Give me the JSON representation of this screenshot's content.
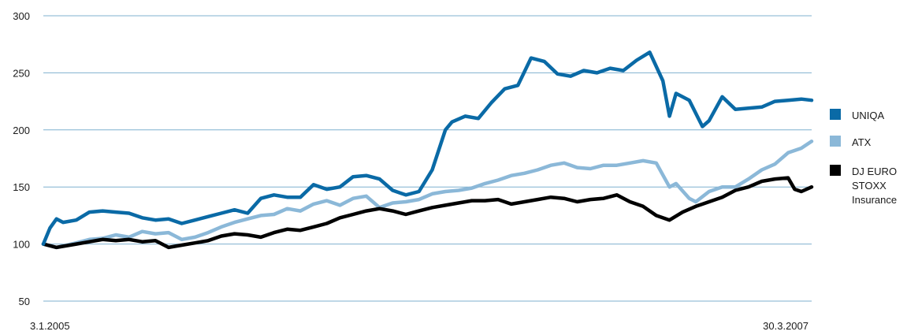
{
  "chart_data": {
    "type": "line",
    "title": "",
    "xlabel": "",
    "ylabel": "",
    "ylim": [
      50,
      300
    ],
    "yticks": [
      50,
      100,
      150,
      200,
      250,
      300
    ],
    "xlim": [
      "2005-01-03",
      "2007-03-30"
    ],
    "x_tick_labels": [
      "3.1.2005",
      "30.3.2007"
    ],
    "grid": "horizontal",
    "legend_position": "right",
    "series": [
      {
        "name": "UNIQA",
        "color": "#0a6aa6",
        "points": [
          [
            "2005-01-03",
            100
          ],
          [
            "2005-01-10",
            114
          ],
          [
            "2005-01-17",
            122
          ],
          [
            "2005-01-24",
            119
          ],
          [
            "2005-02-07",
            121
          ],
          [
            "2005-02-21",
            128
          ],
          [
            "2005-03-07",
            129
          ],
          [
            "2005-03-21",
            128
          ],
          [
            "2005-04-04",
            127
          ],
          [
            "2005-04-18",
            123
          ],
          [
            "2005-05-02",
            121
          ],
          [
            "2005-05-16",
            122
          ],
          [
            "2005-05-30",
            118
          ],
          [
            "2005-06-13",
            121
          ],
          [
            "2005-06-27",
            124
          ],
          [
            "2005-07-11",
            127
          ],
          [
            "2005-07-25",
            130
          ],
          [
            "2005-08-08",
            127
          ],
          [
            "2005-08-22",
            140
          ],
          [
            "2005-09-05",
            143
          ],
          [
            "2005-09-19",
            141
          ],
          [
            "2005-10-03",
            141
          ],
          [
            "2005-10-17",
            152
          ],
          [
            "2005-10-31",
            148
          ],
          [
            "2005-11-14",
            150
          ],
          [
            "2005-11-28",
            159
          ],
          [
            "2005-12-12",
            160
          ],
          [
            "2005-12-26",
            157
          ],
          [
            "2006-01-09",
            147
          ],
          [
            "2006-01-23",
            143
          ],
          [
            "2006-02-06",
            146
          ],
          [
            "2006-02-20",
            165
          ],
          [
            "2006-03-06",
            200
          ],
          [
            "2006-03-13",
            207
          ],
          [
            "2006-03-27",
            212
          ],
          [
            "2006-04-10",
            210
          ],
          [
            "2006-04-24",
            224
          ],
          [
            "2006-05-08",
            236
          ],
          [
            "2006-05-22",
            239
          ],
          [
            "2006-06-05",
            263
          ],
          [
            "2006-06-19",
            260
          ],
          [
            "2006-07-03",
            249
          ],
          [
            "2006-07-17",
            247
          ],
          [
            "2006-07-31",
            252
          ],
          [
            "2006-08-14",
            250
          ],
          [
            "2006-08-28",
            254
          ],
          [
            "2006-09-11",
            252
          ],
          [
            "2006-09-25",
            261
          ],
          [
            "2006-10-09",
            268
          ],
          [
            "2006-10-23",
            243
          ],
          [
            "2006-10-30",
            212
          ],
          [
            "2006-11-06",
            232
          ],
          [
            "2006-11-20",
            226
          ],
          [
            "2006-12-04",
            203
          ],
          [
            "2006-12-11",
            208
          ],
          [
            "2006-12-25",
            229
          ],
          [
            "2007-01-08",
            218
          ],
          [
            "2007-01-22",
            219
          ],
          [
            "2007-02-05",
            220
          ],
          [
            "2007-02-19",
            225
          ],
          [
            "2007-03-05",
            226
          ],
          [
            "2007-03-19",
            227
          ],
          [
            "2007-03-30",
            226
          ]
        ]
      },
      {
        "name": "ATX",
        "color": "#8bb8d8",
        "points": [
          [
            "2005-01-03",
            100
          ],
          [
            "2005-01-17",
            97
          ],
          [
            "2005-02-07",
            101
          ],
          [
            "2005-02-21",
            104
          ],
          [
            "2005-03-07",
            105
          ],
          [
            "2005-03-21",
            108
          ],
          [
            "2005-04-04",
            106
          ],
          [
            "2005-04-18",
            111
          ],
          [
            "2005-05-02",
            109
          ],
          [
            "2005-05-16",
            110
          ],
          [
            "2005-05-30",
            104
          ],
          [
            "2005-06-13",
            106
          ],
          [
            "2005-06-27",
            110
          ],
          [
            "2005-07-11",
            115
          ],
          [
            "2005-07-25",
            119
          ],
          [
            "2005-08-08",
            122
          ],
          [
            "2005-08-22",
            125
          ],
          [
            "2005-09-05",
            126
          ],
          [
            "2005-09-19",
            131
          ],
          [
            "2005-10-03",
            129
          ],
          [
            "2005-10-17",
            135
          ],
          [
            "2005-10-31",
            138
          ],
          [
            "2005-11-14",
            134
          ],
          [
            "2005-11-28",
            140
          ],
          [
            "2005-12-12",
            142
          ],
          [
            "2005-12-26",
            132
          ],
          [
            "2006-01-09",
            136
          ],
          [
            "2006-01-23",
            137
          ],
          [
            "2006-02-06",
            139
          ],
          [
            "2006-02-20",
            144
          ],
          [
            "2006-03-06",
            146
          ],
          [
            "2006-03-20",
            147
          ],
          [
            "2006-04-03",
            149
          ],
          [
            "2006-04-17",
            153
          ],
          [
            "2006-05-01",
            156
          ],
          [
            "2006-05-15",
            160
          ],
          [
            "2006-05-29",
            162
          ],
          [
            "2006-06-12",
            165
          ],
          [
            "2006-06-26",
            169
          ],
          [
            "2006-07-10",
            171
          ],
          [
            "2006-07-24",
            167
          ],
          [
            "2006-08-07",
            166
          ],
          [
            "2006-08-21",
            169
          ],
          [
            "2006-09-04",
            169
          ],
          [
            "2006-09-18",
            171
          ],
          [
            "2006-10-02",
            173
          ],
          [
            "2006-10-16",
            171
          ],
          [
            "2006-10-30",
            150
          ],
          [
            "2006-11-06",
            153
          ],
          [
            "2006-11-20",
            140
          ],
          [
            "2006-11-27",
            137
          ],
          [
            "2006-12-11",
            146
          ],
          [
            "2006-12-25",
            150
          ],
          [
            "2007-01-08",
            150
          ],
          [
            "2007-01-22",
            157
          ],
          [
            "2007-02-05",
            165
          ],
          [
            "2007-02-19",
            170
          ],
          [
            "2007-03-05",
            180
          ],
          [
            "2007-03-19",
            184
          ],
          [
            "2007-03-30",
            190
          ]
        ]
      },
      {
        "name": "DJ EURO STOXX Insurance",
        "color": "#000000",
        "points": [
          [
            "2005-01-03",
            100
          ],
          [
            "2005-01-17",
            97
          ],
          [
            "2005-02-07",
            100
          ],
          [
            "2005-02-21",
            102
          ],
          [
            "2005-03-07",
            104
          ],
          [
            "2005-03-21",
            103
          ],
          [
            "2005-04-04",
            104
          ],
          [
            "2005-04-18",
            102
          ],
          [
            "2005-05-02",
            103
          ],
          [
            "2005-05-16",
            97
          ],
          [
            "2005-05-30",
            99
          ],
          [
            "2005-06-13",
            101
          ],
          [
            "2005-06-27",
            103
          ],
          [
            "2005-07-11",
            107
          ],
          [
            "2005-07-25",
            109
          ],
          [
            "2005-08-08",
            108
          ],
          [
            "2005-08-22",
            106
          ],
          [
            "2005-09-05",
            110
          ],
          [
            "2005-09-19",
            113
          ],
          [
            "2005-10-03",
            112
          ],
          [
            "2005-10-17",
            115
          ],
          [
            "2005-10-31",
            118
          ],
          [
            "2005-11-14",
            123
          ],
          [
            "2005-11-28",
            126
          ],
          [
            "2005-12-12",
            129
          ],
          [
            "2005-12-26",
            131
          ],
          [
            "2006-01-09",
            129
          ],
          [
            "2006-01-23",
            126
          ],
          [
            "2006-02-06",
            129
          ],
          [
            "2006-02-20",
            132
          ],
          [
            "2006-03-06",
            134
          ],
          [
            "2006-03-20",
            136
          ],
          [
            "2006-04-03",
            138
          ],
          [
            "2006-04-17",
            138
          ],
          [
            "2006-05-01",
            139
          ],
          [
            "2006-05-15",
            135
          ],
          [
            "2006-05-29",
            137
          ],
          [
            "2006-06-12",
            139
          ],
          [
            "2006-06-26",
            141
          ],
          [
            "2006-07-10",
            140
          ],
          [
            "2006-07-24",
            137
          ],
          [
            "2006-08-07",
            139
          ],
          [
            "2006-08-21",
            140
          ],
          [
            "2006-09-04",
            143
          ],
          [
            "2006-09-18",
            137
          ],
          [
            "2006-10-02",
            133
          ],
          [
            "2006-10-16",
            125
          ],
          [
            "2006-10-30",
            121
          ],
          [
            "2006-11-13",
            128
          ],
          [
            "2006-11-27",
            133
          ],
          [
            "2006-12-11",
            137
          ],
          [
            "2006-12-25",
            141
          ],
          [
            "2007-01-08",
            147
          ],
          [
            "2007-01-22",
            150
          ],
          [
            "2007-02-05",
            155
          ],
          [
            "2007-02-19",
            157
          ],
          [
            "2007-03-05",
            158
          ],
          [
            "2007-03-12",
            148
          ],
          [
            "2007-03-19",
            146
          ],
          [
            "2007-03-30",
            150
          ]
        ]
      }
    ],
    "legend": [
      {
        "series": "UNIQA",
        "lines": [
          "UNIQA"
        ]
      },
      {
        "series": "ATX",
        "lines": [
          "ATX"
        ]
      },
      {
        "series": "DJ EURO STOXX Insurance",
        "lines": [
          "DJ EURO",
          "STOXX",
          "Insurance"
        ]
      }
    ]
  }
}
